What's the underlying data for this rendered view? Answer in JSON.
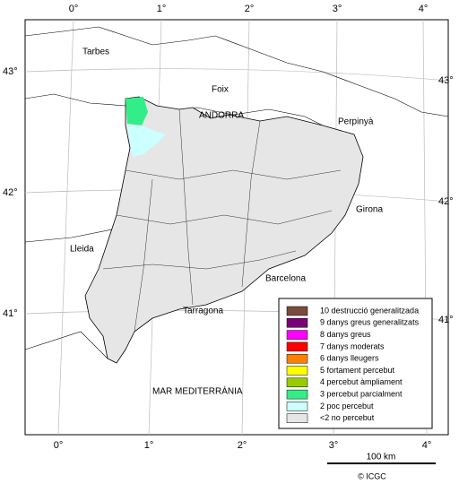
{
  "graticule": {
    "top": [
      "0°",
      "1°",
      "2°",
      "3°",
      "4°"
    ],
    "bottom": [
      "0°",
      "1°",
      "2°",
      "3°",
      "4°"
    ],
    "left": [
      "43°",
      "42°",
      "41°"
    ],
    "right": [
      "43°",
      "42°",
      "41°"
    ]
  },
  "places": [
    "Tarbes",
    "Foix",
    "ANDORRA",
    "Perpinyà",
    "Girona",
    "Lleida",
    "Barcelona",
    "Tarragona",
    "MAR MEDITERRÀNIA"
  ],
  "legend": [
    {
      "label": "10 destrucció generalitzada",
      "color": "#7b4a3f"
    },
    {
      "label": "9 danys greus generalitzats",
      "color": "#7a007a"
    },
    {
      "label": "8 danys greus",
      "color": "#ff00ff"
    },
    {
      "label": "7 danys moderats",
      "color": "#ff0000"
    },
    {
      "label": "6 danys lleugers",
      "color": "#ff8000"
    },
    {
      "label": "5 fortament percebut",
      "color": "#ffff00"
    },
    {
      "label": "4 percebut àmpliament",
      "color": "#99cc00"
    },
    {
      "label": "3 percebut parcialment",
      "color": "#33ee88"
    },
    {
      "label": "2 poc percebut",
      "color": "#ccffff"
    },
    {
      "label": "<2 no percebut",
      "color": "#e6e6e6"
    }
  ],
  "scale": "100 km",
  "credit": "© ICGC"
}
